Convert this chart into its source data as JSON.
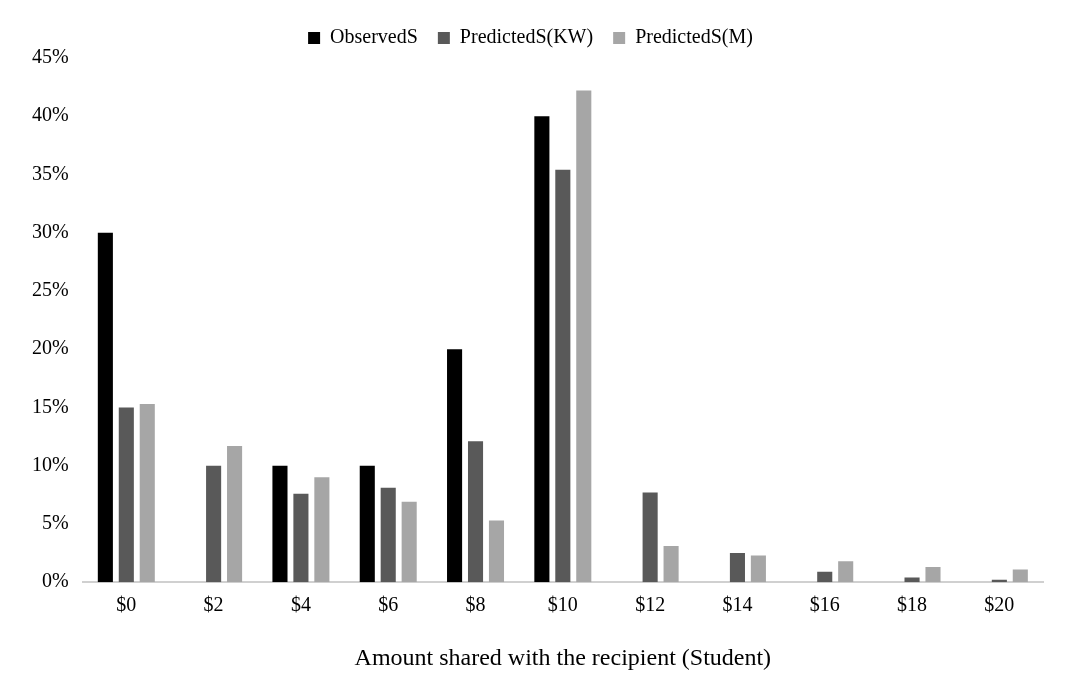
{
  "chart_data": {
    "type": "bar",
    "xlabel": "Amount shared with the recipient (Student)",
    "categories": [
      "$0",
      "$2",
      "$4",
      "$6",
      "$8",
      "$10",
      "$12",
      "$14",
      "$16",
      "$18",
      "$20"
    ],
    "series": [
      {
        "name": "ObservedS",
        "color": "#000000",
        "values": [
          30,
          0,
          10,
          10,
          20,
          40,
          0,
          0,
          0,
          0,
          0
        ]
      },
      {
        "name": "PredictedS(KW)",
        "color": "#595959",
        "values": [
          15,
          10,
          7.6,
          8.1,
          12.1,
          35.4,
          7.7,
          2.5,
          0.9,
          0.4,
          0.2
        ]
      },
      {
        "name": "PredictedS(M)",
        "color": "#a6a6a6",
        "values": [
          15.3,
          11.7,
          9,
          6.9,
          5.3,
          42.2,
          3.1,
          2.3,
          1.8,
          1.3,
          1.1
        ]
      }
    ],
    "ylim": [
      0,
      45
    ],
    "yticks": [
      {
        "value": 0,
        "label": "0%"
      },
      {
        "value": 5,
        "label": "5%"
      },
      {
        "value": 10,
        "label": "10%"
      },
      {
        "value": 15,
        "label": "15%"
      },
      {
        "value": 20,
        "label": "20%"
      },
      {
        "value": 25,
        "label": "25%"
      },
      {
        "value": 30,
        "label": "30%"
      },
      {
        "value": 35,
        "label": "35%"
      },
      {
        "value": 40,
        "label": "40%"
      },
      {
        "value": 45,
        "label": "45%"
      }
    ],
    "grid": false,
    "legend": "top"
  }
}
